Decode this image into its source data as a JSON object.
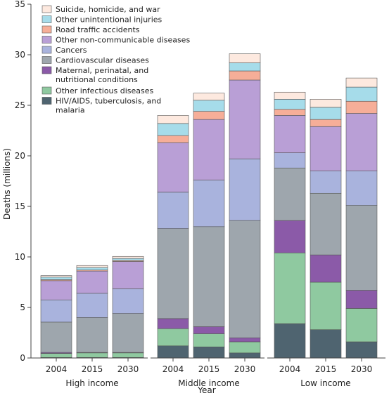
{
  "chart_data": {
    "type": "bar",
    "stacked": true,
    "xlabel": "Year",
    "ylabel": "Deaths (millions)",
    "ylim": [
      0,
      35
    ],
    "yticks": [
      0,
      5,
      10,
      15,
      20,
      25,
      30,
      35
    ],
    "grid": false,
    "legend_position": "top-left",
    "groups": [
      {
        "label": "High income",
        "years": [
          "2004",
          "2015",
          "2030"
        ]
      },
      {
        "label": "Middle income",
        "years": [
          "2004",
          "2015",
          "2030"
        ]
      },
      {
        "label": "Low income",
        "years": [
          "2004",
          "2015",
          "2030"
        ]
      }
    ],
    "series": [
      {
        "name": "HIV/AIDS, tuberculosis, and malaria",
        "color": "#4f6470",
        "values": [
          0.05,
          0.05,
          0.05,
          1.2,
          1.1,
          0.5,
          3.4,
          2.8,
          1.6
        ]
      },
      {
        "name": "Other infectious diseases",
        "color": "#8fc9a0",
        "values": [
          0.4,
          0.45,
          0.45,
          1.7,
          1.3,
          1.1,
          7.0,
          4.7,
          3.3
        ]
      },
      {
        "name": "Maternal, perinatal, and nutritional conditions",
        "color": "#8b5aa8",
        "values": [
          0.1,
          0.05,
          0.05,
          1.0,
          0.7,
          0.4,
          3.2,
          2.7,
          1.8
        ]
      },
      {
        "name": "Cardiovascular diseases",
        "color": "#9ea6ad",
        "values": [
          3.0,
          3.45,
          3.85,
          8.9,
          9.9,
          11.6,
          5.2,
          6.1,
          8.4
        ]
      },
      {
        "name": "Cancers",
        "color": "#a9b3dd",
        "values": [
          2.2,
          2.4,
          2.45,
          3.6,
          4.6,
          6.1,
          1.5,
          2.2,
          3.4
        ]
      },
      {
        "name": "Other non-communicable diseases",
        "color": "#b99fd6",
        "values": [
          1.9,
          2.2,
          2.7,
          4.9,
          6.0,
          7.8,
          3.7,
          4.4,
          5.7
        ]
      },
      {
        "name": "Road traffic accidents",
        "color": "#f6ae98",
        "values": [
          0.1,
          0.1,
          0.1,
          0.7,
          0.8,
          0.9,
          0.6,
          0.7,
          1.2
        ]
      },
      {
        "name": "Other unintentional injuries",
        "color": "#a6dcea",
        "values": [
          0.25,
          0.25,
          0.2,
          1.2,
          1.1,
          0.8,
          1.0,
          1.2,
          1.4
        ]
      },
      {
        "name": "Suicide, homicide, and war",
        "color": "#fde9df",
        "values": [
          0.15,
          0.2,
          0.2,
          0.8,
          0.7,
          0.9,
          0.7,
          0.8,
          0.9
        ]
      }
    ]
  }
}
